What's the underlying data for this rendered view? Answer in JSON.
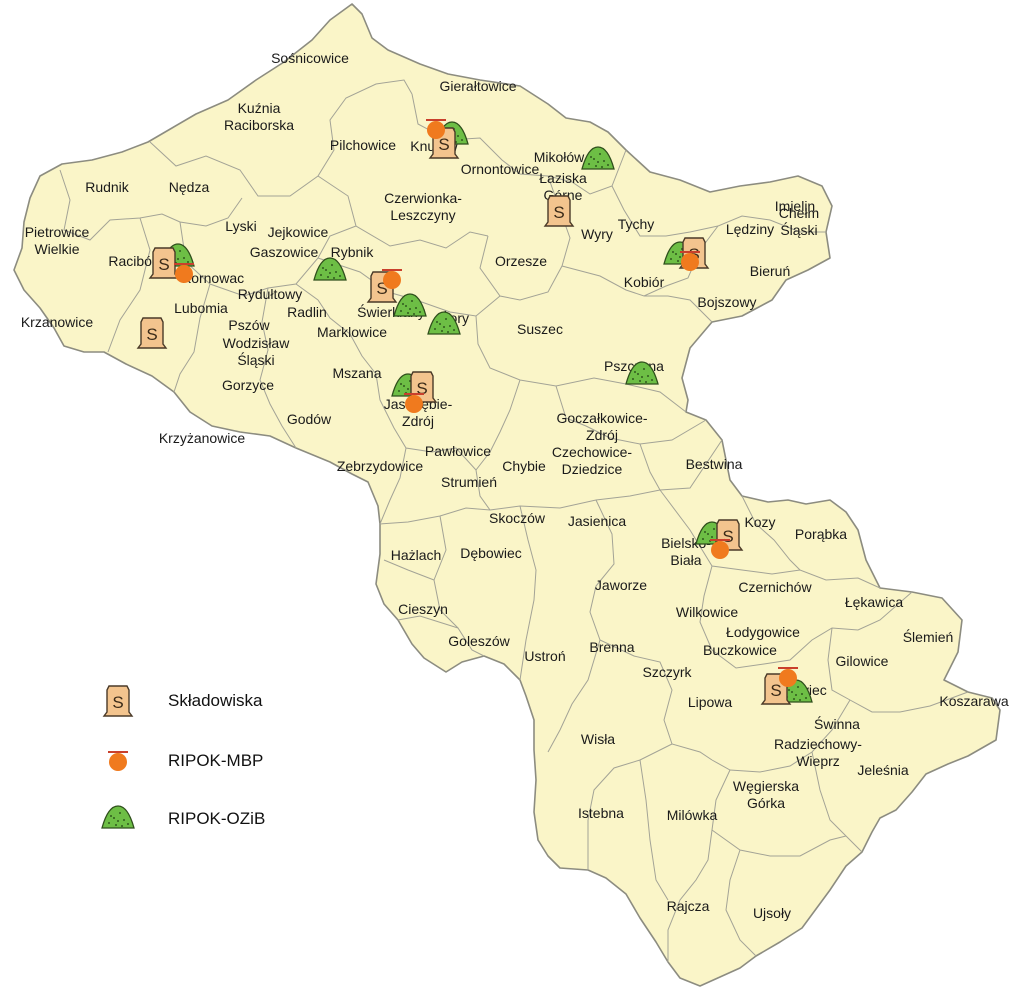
{
  "places": [
    {
      "id": "sosnicowice",
      "label": "Sośnicowice"
    },
    {
      "id": "gieraltowice",
      "label": "Gierałtowice"
    },
    {
      "id": "kuznia",
      "label": "Kuźnia\nRaciborska"
    },
    {
      "id": "pilchowice",
      "label": "Pilchowice"
    },
    {
      "id": "knurow",
      "label": "Knurów"
    },
    {
      "id": "ornontowice",
      "label": "Ornontowice"
    },
    {
      "id": "mikolow",
      "label": "Mikołów"
    },
    {
      "id": "rudnik",
      "label": "Rudnik"
    },
    {
      "id": "nedza",
      "label": "Nędza"
    },
    {
      "id": "laziska",
      "label": "Łaziska\nGórne"
    },
    {
      "id": "czerwionka",
      "label": "Czerwionka-\nLeszczyny"
    },
    {
      "id": "imielin",
      "label": "Imielin"
    },
    {
      "id": "tychy",
      "label": "Tychy"
    },
    {
      "id": "ledziny",
      "label": "Lędziny"
    },
    {
      "id": "chelm",
      "label": "Chełm\nŚląski"
    },
    {
      "id": "lyski",
      "label": "Lyski"
    },
    {
      "id": "jejkowice",
      "label": "Jejkowice"
    },
    {
      "id": "wyry",
      "label": "Wyry"
    },
    {
      "id": "pietrowice",
      "label": "Pietrowice\nWielkie"
    },
    {
      "id": "gaszowice",
      "label": "Gaszowice"
    },
    {
      "id": "rybnik",
      "label": "Rybnik"
    },
    {
      "id": "raciborz",
      "label": "Racibórz"
    },
    {
      "id": "orzesze",
      "label": "Orzesze"
    },
    {
      "id": "bierun",
      "label": "Bieruń"
    },
    {
      "id": "kornowac",
      "label": "Kornowac"
    },
    {
      "id": "kobior",
      "label": "Kobiór"
    },
    {
      "id": "rydultowy",
      "label": "Rydułtowy"
    },
    {
      "id": "bojszowy",
      "label": "Bojszowy"
    },
    {
      "id": "lubomia",
      "label": "Lubomia"
    },
    {
      "id": "radlin",
      "label": "Radlin"
    },
    {
      "id": "swierklany",
      "label": "Świerklany"
    },
    {
      "id": "zory",
      "label": "Żory"
    },
    {
      "id": "krzanowice",
      "label": "Krzanowice"
    },
    {
      "id": "pszow",
      "label": "Pszów"
    },
    {
      "id": "marklowice",
      "label": "Marklowice"
    },
    {
      "id": "suszec",
      "label": "Suszec"
    },
    {
      "id": "wodzislaw",
      "label": "Wodzisław\nŚląski"
    },
    {
      "id": "pszczyna",
      "label": "Pszczyna"
    },
    {
      "id": "mszana",
      "label": "Mszana"
    },
    {
      "id": "gorzyce",
      "label": "Gorzyce"
    },
    {
      "id": "jastrzebie",
      "label": "Jastrzębie-\nZdrój"
    },
    {
      "id": "godow",
      "label": "Godów"
    },
    {
      "id": "goczalkowice",
      "label": "Goczałkowice-\nZdrój"
    },
    {
      "id": "krzyzanowice",
      "label": "Krzyżanowice"
    },
    {
      "id": "pawlowice",
      "label": "Pawłowice"
    },
    {
      "id": "czechowice",
      "label": "Czechowice-\nDziedzice"
    },
    {
      "id": "chybie",
      "label": "Chybie"
    },
    {
      "id": "bestwina",
      "label": "Bestwina"
    },
    {
      "id": "zebrzydowice",
      "label": "Zebrzydowice"
    },
    {
      "id": "strumien",
      "label": "Strumień"
    },
    {
      "id": "skoczow",
      "label": "Skoczów"
    },
    {
      "id": "jasienica",
      "label": "Jasienica"
    },
    {
      "id": "kozy",
      "label": "Kozy"
    },
    {
      "id": "porabka",
      "label": "Porąbka"
    },
    {
      "id": "bielsko",
      "label": "Bielsko-\nBiała"
    },
    {
      "id": "hazlach",
      "label": "Hażlach"
    },
    {
      "id": "debowiec",
      "label": "Dębowiec"
    },
    {
      "id": "jaworze",
      "label": "Jaworze"
    },
    {
      "id": "czernichow",
      "label": "Czernichów"
    },
    {
      "id": "lekawica",
      "label": "Łękawica"
    },
    {
      "id": "cieszyn",
      "label": "Cieszyn"
    },
    {
      "id": "wilkowice",
      "label": "Wilkowice"
    },
    {
      "id": "slemien",
      "label": "Ślemień"
    },
    {
      "id": "lodygowice",
      "label": "Łodygowice"
    },
    {
      "id": "goleszow",
      "label": "Goleszów"
    },
    {
      "id": "brenna",
      "label": "Brenna"
    },
    {
      "id": "buczkowice",
      "label": "Buczkowice"
    },
    {
      "id": "gilowice",
      "label": "Gilowice"
    },
    {
      "id": "ustron",
      "label": "Ustroń"
    },
    {
      "id": "szczyrk",
      "label": "Szczyrk"
    },
    {
      "id": "zywiec",
      "label": "Żywiec"
    },
    {
      "id": "koszarawa",
      "label": "Koszarawa"
    },
    {
      "id": "lipowa",
      "label": "Lipowa"
    },
    {
      "id": "swinna",
      "label": "Świnna"
    },
    {
      "id": "wisla",
      "label": "Wisła"
    },
    {
      "id": "radziechowy",
      "label": "Radziechowy-\nWieprz"
    },
    {
      "id": "jelesnia",
      "label": "Jeleśnia"
    },
    {
      "id": "wegierska",
      "label": "Węgierska\nGórka"
    },
    {
      "id": "istebna",
      "label": "Istebna"
    },
    {
      "id": "milowka",
      "label": "Milówka"
    },
    {
      "id": "rajcza",
      "label": "Rajcza"
    },
    {
      "id": "ujsoly",
      "label": "Ujsoły"
    }
  ],
  "facilities": {
    "landfill": [
      "knurow",
      "laziska",
      "tychy",
      "raciborz",
      "rybnik",
      "lubomia",
      "jastrzebie",
      "bielsko",
      "zywiec"
    ],
    "mbp": [
      "knurow",
      "tychy",
      "raciborz",
      "rybnik",
      "jastrzebie",
      "bielsko",
      "zywiec"
    ],
    "ozib": [
      "knurow",
      "mikolow",
      "tychy",
      "raciborz",
      "gaszowice",
      "swierklany",
      "zory",
      "jastrzebie",
      "pszczyna",
      "bielsko",
      "zywiec"
    ]
  },
  "legend": {
    "items": [
      {
        "symbol": "landfill-icon",
        "label": "Składowiska"
      },
      {
        "symbol": "mbp-icon",
        "label": "RIPOK-MBP"
      },
      {
        "symbol": "ozib-icon",
        "label": "RIPOK-OZiB"
      }
    ]
  },
  "colors": {
    "land": "#FAF5C8",
    "landfill": "#F3C48E",
    "mbp": "#F07A1E",
    "ozib": "#6DBE45"
  },
  "symbols": {
    "landfill_letter": "S"
  }
}
